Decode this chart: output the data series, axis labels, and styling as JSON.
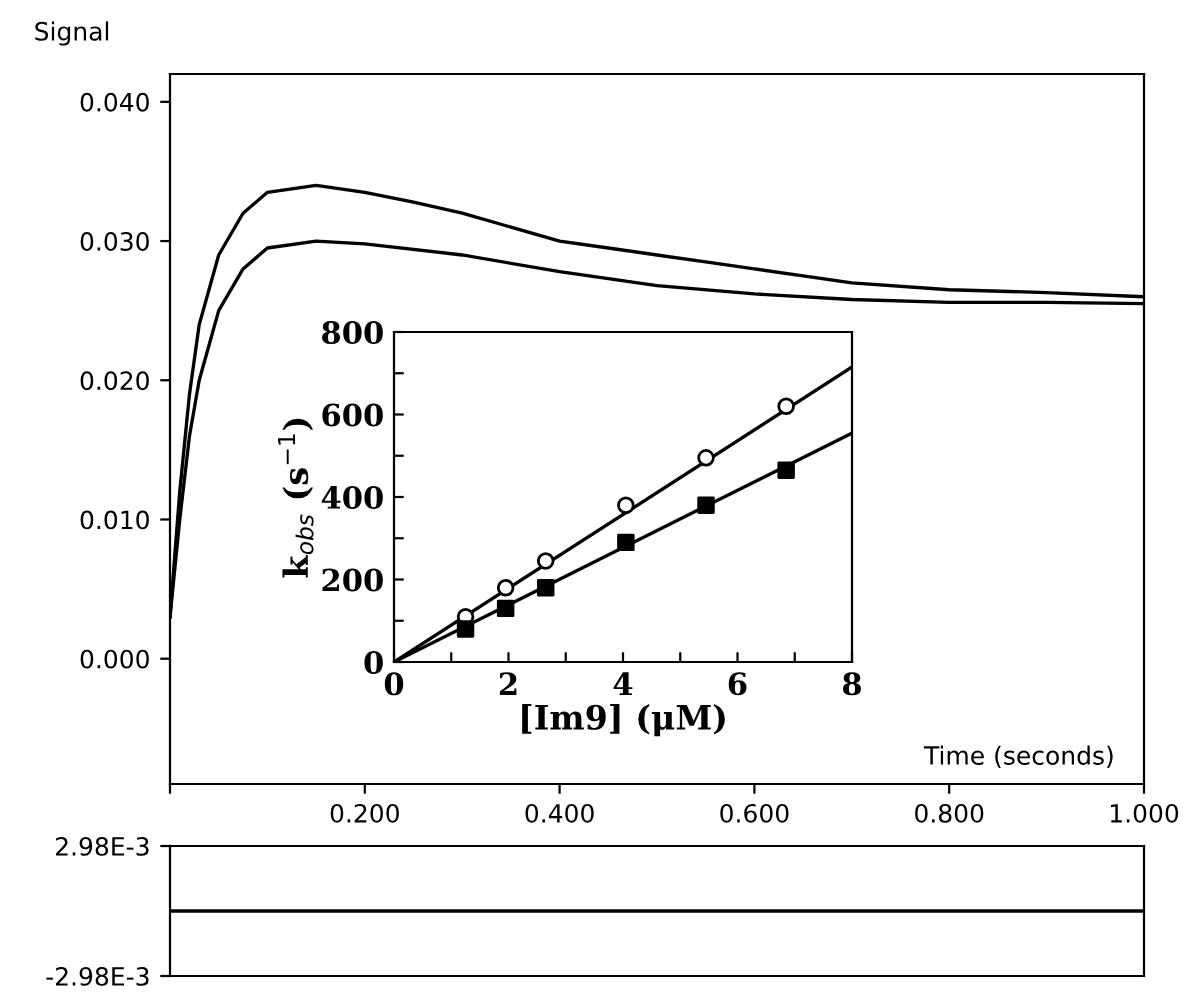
{
  "chart_data": [
    {
      "type": "line",
      "ylabel": "Signal",
      "xlabel": "Time (seconds)",
      "xlim": [
        0,
        1
      ],
      "ylim": [
        -0.009,
        0.042
      ],
      "xticks": [
        {
          "value": 0,
          "label": null
        },
        {
          "value": 0.2,
          "label": "0.200"
        },
        {
          "value": 0.4,
          "label": "0.400"
        },
        {
          "value": 0.6,
          "label": "0.600"
        },
        {
          "value": 0.8,
          "label": "0.800"
        },
        {
          "value": 1.0,
          "label": "1.000"
        }
      ],
      "yticks": [
        {
          "value": 0,
          "label": "0.000"
        },
        {
          "value": 0.01,
          "label": "0.010"
        },
        {
          "value": 0.02,
          "label": "0.020"
        },
        {
          "value": 0.03,
          "label": "0.030"
        },
        {
          "value": 0.04,
          "label": "0.040"
        }
      ],
      "grid": false,
      "legend": false,
      "series": [
        {
          "color": "#000000",
          "x": [
            0,
            0.01,
            0.02,
            0.03,
            0.05,
            0.075,
            0.1,
            0.15,
            0.2,
            0.25,
            0.3,
            0.35,
            0.4,
            0.45,
            0.5,
            0.55,
            0.6,
            0.65,
            0.7,
            0.8,
            0.9,
            1.0
          ],
          "values": [
            0.003,
            0.012,
            0.019,
            0.024,
            0.029,
            0.032,
            0.0335,
            0.034,
            0.0335,
            0.0328,
            0.032,
            0.031,
            0.03,
            0.0295,
            0.029,
            0.0285,
            0.028,
            0.0275,
            0.027,
            0.0265,
            0.0263,
            0.026
          ]
        },
        {
          "color": "#000000",
          "x": [
            0,
            0.01,
            0.02,
            0.03,
            0.05,
            0.075,
            0.1,
            0.15,
            0.2,
            0.3,
            0.4,
            0.5,
            0.6,
            0.7,
            0.8,
            0.9,
            1.0
          ],
          "values": [
            0.003,
            0.01,
            0.016,
            0.02,
            0.025,
            0.028,
            0.0295,
            0.03,
            0.0298,
            0.029,
            0.0278,
            0.0268,
            0.0262,
            0.0258,
            0.0256,
            0.0256,
            0.0255
          ]
        }
      ]
    },
    {
      "type": "scatter",
      "xlabel": "[Im9] (μM)",
      "ylabel": "k$_{obs}$ (s$^{−1}$)",
      "xlim": [
        0,
        8
      ],
      "ylim": [
        0,
        800
      ],
      "xticks": [
        0,
        {
          "value": 1,
          "label": null
        },
        2,
        {
          "value": 3,
          "label": null
        },
        4,
        {
          "value": 5,
          "label": null
        },
        6,
        {
          "value": 7,
          "label": null
        },
        8
      ],
      "yticks": [
        0,
        {
          "value": 100,
          "label": null
        },
        200,
        {
          "value": 300,
          "label": null
        },
        400,
        {
          "value": 500,
          "label": null
        },
        600,
        {
          "value": 700,
          "label": null
        },
        800
      ],
      "grid": false,
      "legend": false,
      "series": [
        {
          "color": "#ffffff",
          "marker": "circle",
          "x": [
            1.25,
            1.95,
            2.65,
            4.05,
            5.45,
            6.85
          ],
          "values": [
            110,
            180,
            245,
            380,
            495,
            620
          ]
        },
        {
          "color": "#000000",
          "marker": "square",
          "x": [
            1.25,
            1.95,
            2.65,
            4.05,
            5.45,
            6.85
          ],
          "values": [
            80,
            130,
            180,
            290,
            380,
            465
          ]
        },
        {
          "type": "line",
          "color": "#000000",
          "marker": "none",
          "x": [
            0,
            8
          ],
          "values": [
            0,
            715
          ]
        },
        {
          "type": "line",
          "color": "#000000",
          "marker": "none",
          "x": [
            0,
            8
          ],
          "values": [
            0,
            555
          ]
        }
      ]
    },
    {
      "type": "line",
      "xlim": [
        0,
        1
      ],
      "ylim": [
        -0.00298,
        0.00298
      ],
      "yticks": [
        {
          "value": -0.00298,
          "label": "-2.98E-3"
        },
        {
          "value": 0.00298,
          "label": "2.98E-3"
        }
      ],
      "tick_labels": "y",
      "grid": false,
      "legend": false,
      "series": [
        {
          "color": "#000000",
          "x": [
            0,
            1
          ],
          "values": [
            0,
            0
          ]
        }
      ]
    }
  ]
}
